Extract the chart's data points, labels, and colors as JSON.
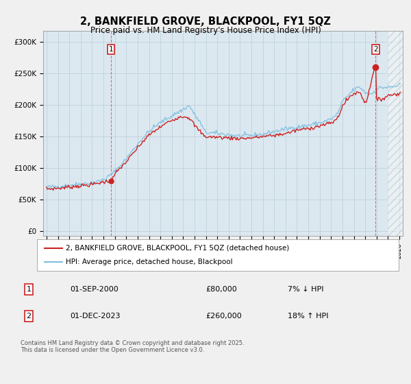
{
  "title": "2, BANKFIELD GROVE, BLACKPOOL, FY1 5QZ",
  "subtitle": "Price paid vs. HM Land Registry's House Price Index (HPI)",
  "title_fontsize": 10.5,
  "subtitle_fontsize": 8.5,
  "ylabel_ticks": [
    "£0",
    "£50K",
    "£100K",
    "£150K",
    "£200K",
    "£250K",
    "£300K"
  ],
  "ytick_values": [
    0,
    50000,
    100000,
    150000,
    200000,
    250000,
    300000
  ],
  "ylim": [
    -8000,
    318000
  ],
  "xlim_start": 1994.7,
  "xlim_end": 2026.3,
  "hpi_color": "#7fbfdf",
  "price_color": "#cc2222",
  "bg_color": "#f0f0f0",
  "plot_bg_color": "#dce8f0",
  "grid_color": "#b8cdd8",
  "legend_label_red": "2, BANKFIELD GROVE, BLACKPOOL, FY1 5QZ (detached house)",
  "legend_label_blue": "HPI: Average price, detached house, Blackpool",
  "point1_label": "1",
  "point1_date": "01-SEP-2000",
  "point1_price": "£80,000",
  "point1_hpi": "7% ↓ HPI",
  "point2_label": "2",
  "point2_date": "01-DEC-2023",
  "point2_price": "£260,000",
  "point2_hpi": "18% ↑ HPI",
  "footer": "Contains HM Land Registry data © Crown copyright and database right 2025.\nThis data is licensed under the Open Government Licence v3.0.",
  "point1_x": 2000.67,
  "point1_y": 80000,
  "point2_x": 2023.92,
  "point2_y": 260000,
  "hatch_start": 2025.0,
  "hatch_end": 2026.3
}
